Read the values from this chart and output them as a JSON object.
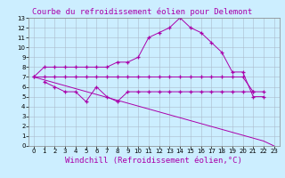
{
  "title": "Courbe du refroidissement éolien pour Delemont",
  "xlabel": "Windchill (Refroidissement éolien,°C)",
  "bg_color": "#cceeff",
  "grid_color": "#aabbcc",
  "line_color": "#aa00aa",
  "title_bg": "#cceeff",
  "xlim": [
    -0.5,
    23.5
  ],
  "ylim": [
    0,
    13
  ],
  "xticks": [
    0,
    1,
    2,
    3,
    4,
    5,
    6,
    7,
    8,
    9,
    10,
    11,
    12,
    13,
    14,
    15,
    16,
    17,
    18,
    19,
    20,
    21,
    22,
    23
  ],
  "yticks": [
    0,
    1,
    2,
    3,
    4,
    5,
    6,
    7,
    8,
    9,
    10,
    11,
    12,
    13
  ],
  "line1_x": [
    0,
    1,
    2,
    3,
    4,
    5,
    6,
    7,
    8,
    9,
    10,
    11,
    12,
    13,
    14,
    15,
    16,
    17,
    18,
    19,
    20,
    21,
    22
  ],
  "line1_y": [
    7.0,
    8.0,
    8.0,
    8.0,
    8.0,
    8.0,
    8.0,
    8.0,
    8.5,
    8.5,
    9.0,
    11.0,
    11.5,
    12.0,
    13.0,
    12.0,
    11.5,
    10.5,
    9.5,
    7.5,
    7.5,
    5.0,
    5.0
  ],
  "line2_x": [
    0,
    1,
    2,
    3,
    4,
    5,
    6,
    7,
    8,
    9,
    10,
    11,
    12,
    13,
    14,
    15,
    16,
    17,
    18,
    19,
    20,
    21,
    22
  ],
  "line2_y": [
    7.0,
    7.0,
    7.0,
    7.0,
    7.0,
    7.0,
    7.0,
    7.0,
    7.0,
    7.0,
    7.0,
    7.0,
    7.0,
    7.0,
    7.0,
    7.0,
    7.0,
    7.0,
    7.0,
    7.0,
    7.0,
    5.5,
    5.5
  ],
  "line3_x": [
    1,
    2,
    3,
    4,
    5,
    6,
    7,
    8,
    9,
    10,
    11,
    12,
    13,
    14,
    15,
    16,
    17,
    18,
    19,
    20,
    21
  ],
  "line3_y": [
    6.5,
    6.0,
    5.5,
    5.5,
    4.5,
    6.0,
    5.0,
    4.5,
    5.5,
    5.5,
    5.5,
    5.5,
    5.5,
    5.5,
    5.5,
    5.5,
    5.5,
    5.5,
    5.5,
    5.5,
    5.5
  ],
  "line4_x": [
    0,
    22,
    23
  ],
  "line4_y": [
    7.0,
    0.5,
    0.0
  ],
  "title_fontsize": 6.5,
  "tick_fontsize": 5,
  "label_fontsize": 6.5
}
